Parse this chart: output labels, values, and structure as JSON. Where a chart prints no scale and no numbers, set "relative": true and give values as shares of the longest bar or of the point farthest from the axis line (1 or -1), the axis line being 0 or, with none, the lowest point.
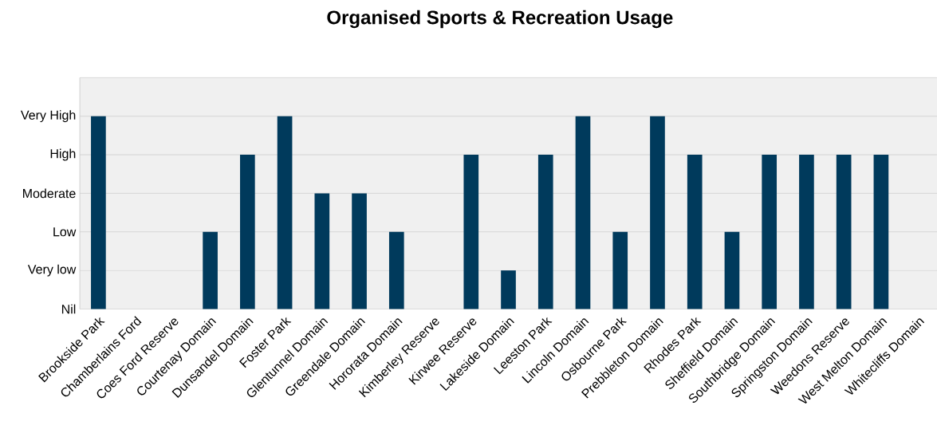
{
  "chart_data": {
    "type": "bar",
    "title": "Organised Sports & Recreation Usage",
    "categories": [
      "Brookside Park",
      "Chamberlains Ford",
      "Coes Ford Reserve",
      "Courtenay Domain",
      "Dunsandel Domain",
      "Foster Park",
      "Glentunnel Domain",
      "Greendale Domain",
      "Hororata Domain",
      "Kimberley Reserve",
      "Kirwee Reserve",
      "Lakeside Domain",
      "Leeston Park",
      "Lincoln Domain",
      "Osbourne Park",
      "Prebbleton Domain",
      "Rhodes Park",
      "Sheffield Domain",
      "Southbridge Domain",
      "Springston Domain",
      "Weedons Reserve",
      "West Melton Domain",
      "Whitecliffs Domain"
    ],
    "values": [
      1,
      0,
      0,
      0.4,
      0.8,
      1,
      0.6,
      0.6,
      0.4,
      0,
      0.8,
      0.2,
      0.8,
      1,
      0.4,
      1,
      0.8,
      0.4,
      0.8,
      0.8,
      0.8,
      0.8,
      0
    ],
    "relative": true,
    "color": "#003a5c",
    "ref_lines": [
      {
        "axis": "y",
        "value": 0,
        "label": "Nil"
      },
      {
        "axis": "y",
        "value": 0.2,
        "label": "Very low"
      },
      {
        "axis": "y",
        "value": 0.4,
        "label": "Low"
      },
      {
        "axis": "y",
        "value": 0.6,
        "label": "Moderate"
      },
      {
        "axis": "y",
        "value": 0.8,
        "label": "High"
      },
      {
        "axis": "y",
        "value": 1,
        "label": "Very High"
      }
    ]
  }
}
